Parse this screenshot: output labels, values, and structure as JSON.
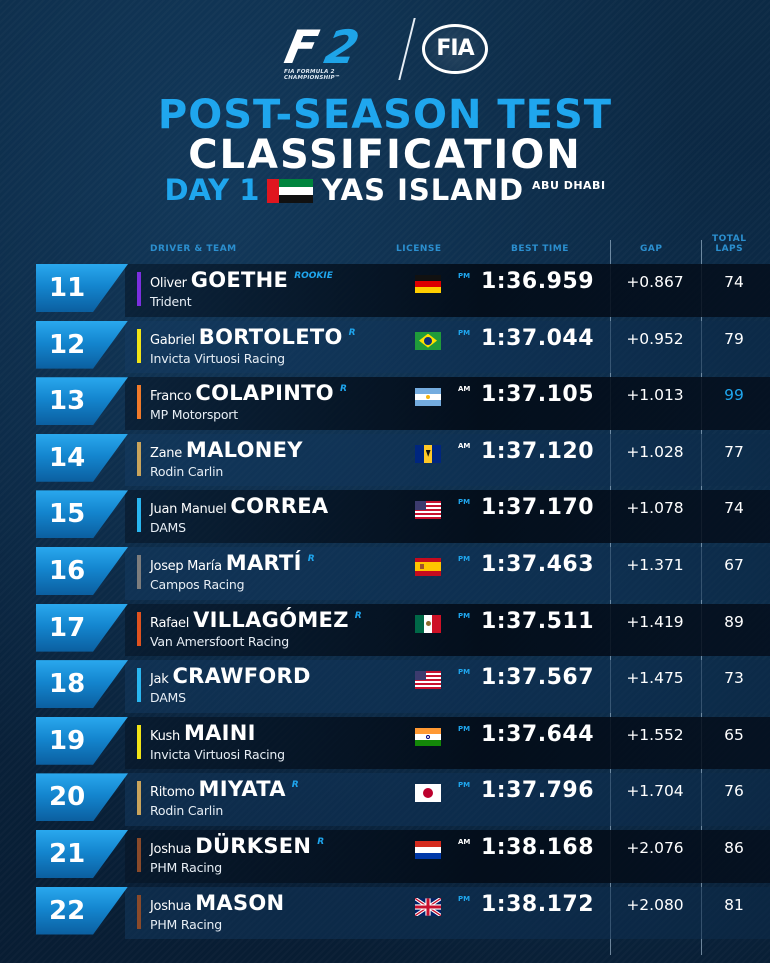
{
  "header": {
    "f2_logo": {
      "letter_f": "F",
      "letter_2": "2",
      "subtitle": "FIA FORMULA 2 CHAMPIONSHIP™"
    },
    "fia_logo": "FIA",
    "title_line1": "POST-SEASON TEST",
    "title_line2": "CLASSIFICATION",
    "day": "DAY 1",
    "venue": "YAS ISLAND",
    "city": "ABU DHABI",
    "country_flag": "uae-flag-icon"
  },
  "columns": {
    "driver_team": "DRIVER & TEAM",
    "license": "LICENSE",
    "best_time": "BEST TIME",
    "gap": "GAP",
    "total_laps_1": "TOTAL",
    "total_laps_2": "LAPS"
  },
  "colors": {
    "accent_blue": "#1fa6ee",
    "background": "#0a2540"
  },
  "rows": [
    {
      "pos": "11",
      "first": "Oliver",
      "last": "GOETHE",
      "tag": "ROOKIE",
      "team": "Trident",
      "team_color": "#7b2fe0",
      "flag": "germany-flag-icon",
      "session": "PM",
      "time": "1:36.959",
      "gap": "+0.867",
      "laps": "74",
      "laps_highlight": false
    },
    {
      "pos": "12",
      "first": "Gabriel",
      "last": "BORTOLETO",
      "tag": "R",
      "team": "Invicta Virtuosi Racing",
      "team_color": "#f1e416",
      "flag": "brazil-flag-icon",
      "session": "PM",
      "time": "1:37.044",
      "gap": "+0.952",
      "laps": "79",
      "laps_highlight": false
    },
    {
      "pos": "13",
      "first": "Franco",
      "last": "COLAPINTO",
      "tag": "R",
      "team": "MP Motorsport",
      "team_color": "#f07a2a",
      "flag": "argentina-flag-icon",
      "session": "AM",
      "time": "1:37.105",
      "gap": "+1.013",
      "laps": "99",
      "laps_highlight": true
    },
    {
      "pos": "14",
      "first": "Zane",
      "last": "MALONEY",
      "tag": "",
      "team": "Rodin Carlin",
      "team_color": "#c9a45c",
      "flag": "barbados-flag-icon",
      "session": "AM",
      "time": "1:37.120",
      "gap": "+1.028",
      "laps": "77",
      "laps_highlight": false
    },
    {
      "pos": "15",
      "first": "Juan Manuel",
      "last": "CORREA",
      "tag": "",
      "team": "DAMS",
      "team_color": "#29b6f0",
      "flag": "usa-flag-icon",
      "session": "PM",
      "time": "1:37.170",
      "gap": "+1.078",
      "laps": "74",
      "laps_highlight": false
    },
    {
      "pos": "16",
      "first": "Josep María",
      "last": "MARTÍ",
      "tag": "R",
      "team": "Campos Racing",
      "team_color": "#7d7d7d",
      "flag": "spain-flag-icon",
      "session": "PM",
      "time": "1:37.463",
      "gap": "+1.371",
      "laps": "67",
      "laps_highlight": false
    },
    {
      "pos": "17",
      "first": "Rafael",
      "last": "VILLAGÓMEZ",
      "tag": "R",
      "team": "Van Amersfoort Racing",
      "team_color": "#e0521f",
      "flag": "mexico-flag-icon",
      "session": "PM",
      "time": "1:37.511",
      "gap": "+1.419",
      "laps": "89",
      "laps_highlight": false
    },
    {
      "pos": "18",
      "first": "Jak",
      "last": "CRAWFORD",
      "tag": "",
      "team": "DAMS",
      "team_color": "#29b6f0",
      "flag": "usa-flag-icon",
      "session": "PM",
      "time": "1:37.567",
      "gap": "+1.475",
      "laps": "73",
      "laps_highlight": false
    },
    {
      "pos": "19",
      "first": "Kush",
      "last": "MAINI",
      "tag": "",
      "team": "Invicta Virtuosi Racing",
      "team_color": "#f1e416",
      "flag": "india-flag-icon",
      "session": "PM",
      "time": "1:37.644",
      "gap": "+1.552",
      "laps": "65",
      "laps_highlight": false
    },
    {
      "pos": "20",
      "first": "Ritomo",
      "last": "MIYATA",
      "tag": "R",
      "team": "Rodin Carlin",
      "team_color": "#c9a45c",
      "flag": "japan-flag-icon",
      "session": "PM",
      "time": "1:37.796",
      "gap": "+1.704",
      "laps": "76",
      "laps_highlight": false
    },
    {
      "pos": "21",
      "first": "Joshua",
      "last": "DÜRKSEN",
      "tag": "R",
      "team": "PHM Racing",
      "team_color": "#8a4a2a",
      "flag": "paraguay-flag-icon",
      "session": "AM",
      "time": "1:38.168",
      "gap": "+2.076",
      "laps": "86",
      "laps_highlight": false
    },
    {
      "pos": "22",
      "first": "Joshua",
      "last": "MASON",
      "tag": "",
      "team": "PHM Racing",
      "team_color": "#8a4a2a",
      "flag": "uk-flag-icon",
      "session": "PM",
      "time": "1:38.172",
      "gap": "+2.080",
      "laps": "81",
      "laps_highlight": false
    }
  ]
}
